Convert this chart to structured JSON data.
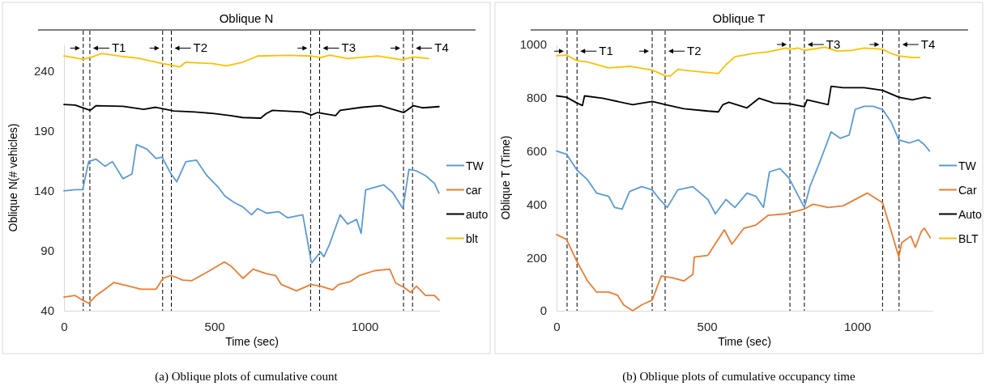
{
  "chart_data": [
    {
      "type": "line",
      "title": "Oblique N",
      "xlabel": "Time (sec)",
      "ylabel": "Oblique N(# vehicles)",
      "xlim": [
        0,
        1250
      ],
      "xticks": [
        0,
        500,
        1000
      ],
      "ylim": [
        40,
        262
      ],
      "yticks": [
        40,
        90,
        140,
        190,
        240
      ],
      "legend": "right",
      "line_style": "solid",
      "series": [
        {
          "name": "TW",
          "color": "#5b9bd5",
          "x": [
            0,
            37,
            62,
            82,
            107,
            136,
            161,
            196,
            226,
            241,
            276,
            306,
            326,
            356,
            375,
            405,
            440,
            475,
            515,
            535,
            565,
            595,
            624,
            644,
            674,
            714,
            744,
            794,
            821,
            824,
            853,
            864,
            883,
            918,
            943,
            973,
            988,
            1003,
            1063,
            1093,
            1127,
            1147,
            1172,
            1202,
            1232,
            1247
          ],
          "values": [
            140,
            141,
            141,
            164.4,
            166.4,
            160.5,
            164.4,
            150.1,
            154,
            178.6,
            174.7,
            167,
            168.1,
            154,
            147.5,
            164.3,
            165.6,
            152.7,
            142.4,
            135.6,
            130.4,
            126.5,
            120,
            125.2,
            121.3,
            122.6,
            117.5,
            120,
            82.5,
            79.9,
            89,
            85,
            95.4,
            120,
            112.3,
            116.2,
            104.5,
            140.8,
            145,
            138.5,
            125.2,
            157.9,
            156.6,
            152.7,
            146.2,
            138
          ]
        },
        {
          "name": "car",
          "color": "#ed7d31",
          "x": [
            0,
            37,
            62,
            82,
            107,
            136,
            166,
            216,
            256,
            306,
            329,
            356,
            395,
            425,
            475,
            533,
            555,
            595,
            629,
            674,
            703,
            723,
            773,
            821,
            853,
            893,
            913,
            953,
            983,
            1033,
            1083,
            1103,
            1132,
            1152,
            1172,
            1202,
            1232,
            1247
          ],
          "values": [
            51.4,
            52.7,
            48.8,
            46.2,
            52.7,
            57.9,
            63.6,
            60.5,
            57.9,
            57.9,
            67,
            69.5,
            65.6,
            65.1,
            72.1,
            80.7,
            77.3,
            67,
            74.7,
            70.8,
            69.5,
            61.8,
            56.6,
            61.8,
            60.5,
            57.4,
            61.8,
            64.4,
            69.5,
            73.4,
            74.7,
            63.1,
            59.2,
            55.3,
            60.5,
            52.7,
            52.7,
            48.8
          ]
        },
        {
          "name": "auto",
          "color": "#000000",
          "x": [
            0,
            37,
            87,
            107,
            196,
            265,
            305,
            365,
            435,
            494,
            554,
            594,
            654,
            673,
            693,
            793,
            823,
            843,
            903,
            918,
            992,
            1052,
            1130,
            1162,
            1192,
            1247
          ],
          "values": [
            212,
            211.5,
            207.1,
            211,
            210.5,
            207.9,
            209.7,
            206.6,
            205.8,
            204.5,
            202.7,
            201.1,
            200.6,
            204.5,
            207.1,
            205.8,
            203.2,
            205.3,
            202.7,
            207.1,
            209.7,
            211,
            205.3,
            211,
            209.2,
            210.2
          ]
        },
        {
          "name": "blt",
          "color": "#ffc000",
          "x": [
            0,
            62,
            87,
            126,
            196,
            246,
            329,
            385,
            405,
            495,
            540,
            595,
            644,
            744,
            821,
            854,
            883,
            943,
            1043,
            1123,
            1162,
            1212
          ],
          "values": [
            252.4,
            249.8,
            251.1,
            254.5,
            251.9,
            250.6,
            246,
            243.3,
            247.3,
            246,
            244.2,
            247.3,
            252.4,
            253,
            252.4,
            251.1,
            253.2,
            250.3,
            252.4,
            249.3,
            251.6,
            250.3
          ]
        }
      ],
      "ref_lines": [
        {
          "axis": "x",
          "value": 64,
          "color": "#000000",
          "line_style": "dashed"
        },
        {
          "axis": "x",
          "value": 86,
          "color": "#000000",
          "line_style": "dashed"
        },
        {
          "axis": "x",
          "value": 328,
          "color": "#000000",
          "line_style": "dashed"
        },
        {
          "axis": "x",
          "value": 357,
          "color": "#000000",
          "line_style": "dashed"
        },
        {
          "axis": "x",
          "value": 820,
          "color": "#000000",
          "line_style": "dashed"
        },
        {
          "axis": "x",
          "value": 850,
          "color": "#000000",
          "line_style": "dashed"
        },
        {
          "axis": "x",
          "value": 1129,
          "color": "#000000",
          "line_style": "dashed"
        },
        {
          "axis": "x",
          "value": 1159,
          "color": "#000000",
          "line_style": "dashed"
        }
      ],
      "annotations": [
        {
          "text": "T1",
          "x": 86,
          "y": 259
        },
        {
          "text": "T2",
          "x": 357,
          "y": 259
        },
        {
          "text": "T3",
          "x": 850,
          "y": 259
        },
        {
          "text": "T4",
          "x": 1159,
          "y": 259
        },
        "(a)  Oblique plots of cumulative count"
      ]
    },
    {
      "type": "line",
      "title": "Oblique T",
      "xlabel": "Time (sec)",
      "ylabel": "Oblique T (Time)",
      "xlim": [
        0,
        1250
      ],
      "xticks": [
        0,
        500,
        1000
      ],
      "ylim": [
        0,
        1000
      ],
      "yticks": [
        0,
        200,
        400,
        600,
        800,
        1000
      ],
      "legend": "right",
      "line_style": "solid",
      "series": [
        {
          "name": "TW",
          "color": "#5b9bd5",
          "x": [
            0,
            33,
            68,
            103,
            133,
            173,
            193,
            218,
            243,
            283,
            318,
            343,
            368,
            403,
            453,
            503,
            528,
            563,
            593,
            633,
            663,
            688,
            708,
            743,
            773,
            824,
            843,
            873,
            913,
            943,
            973,
            993,
            1023,
            1053,
            1084,
            1113,
            1138,
            1173,
            1203,
            1223,
            1240
          ],
          "values": [
            600,
            588,
            528,
            492,
            442,
            430,
            388,
            382,
            448,
            466,
            454,
            418,
            388,
            454,
            466,
            418,
            364,
            418,
            388,
            442,
            430,
            388,
            522,
            534,
            498,
            388,
            468,
            552,
            672,
            648,
            660,
            756,
            768,
            768,
            756,
            708,
            642,
            630,
            642,
            624,
            600
          ]
        },
        {
          "name": "Car",
          "color": "#ed7d31",
          "x": [
            0,
            33,
            68,
            103,
            133,
            173,
            203,
            223,
            253,
            283,
            318,
            348,
            383,
            423,
            453,
            458,
            503,
            558,
            583,
            623,
            663,
            703,
            763,
            824,
            853,
            903,
            953,
            1033,
            1084,
            1113,
            1138,
            1148,
            1178,
            1193,
            1213,
            1223,
            1243
          ],
          "values": [
            286,
            268,
            184,
            112,
            70,
            70,
            58,
            22,
            0,
            22,
            40,
            130,
            124,
            112,
            136,
            202,
            208,
            304,
            250,
            310,
            322,
            358,
            364,
            382,
            400,
            388,
            394,
            442,
            406,
            298,
            202,
            256,
            280,
            238,
            298,
            310,
            274
          ]
        },
        {
          "name": "Auto",
          "color": "#000000",
          "x": [
            0,
            33,
            68,
            86,
            93,
            153,
            253,
            318,
            363,
            423,
            503,
            538,
            553,
            573,
            633,
            673,
            723,
            776,
            824,
            833,
            903,
            913,
            953,
            1023,
            1084,
            1138,
            1183,
            1223,
            1243
          ],
          "values": [
            807,
            802,
            780,
            771,
            807,
            798,
            774,
            786,
            774,
            759,
            750,
            747,
            774,
            783,
            762,
            798,
            780,
            777,
            766,
            792,
            774,
            843,
            838,
            838,
            828,
            802,
            792,
            802,
            798
          ]
        },
        {
          "name": "BLT",
          "color": "#ffc000",
          "x": [
            0,
            33,
            68,
            103,
            173,
            243,
            318,
            363,
            378,
            403,
            453,
            538,
            563,
            593,
            653,
            703,
            763,
            776,
            803,
            824,
            893,
            933,
            983,
            1023,
            1084,
            1113,
            1138,
            1183,
            1208
          ],
          "values": [
            958,
            960,
            939,
            934,
            912,
            918,
            904,
            882,
            882,
            906,
            900,
            891,
            924,
            954,
            966,
            972,
            987,
            982,
            987,
            978,
            990,
            975,
            978,
            987,
            982,
            966,
            957,
            951,
            951
          ]
        }
      ],
      "ref_lines": [
        {
          "axis": "x",
          "value": 35,
          "color": "#000000",
          "line_style": "dashed"
        },
        {
          "axis": "x",
          "value": 68,
          "color": "#000000",
          "line_style": "dashed"
        },
        {
          "axis": "x",
          "value": 318,
          "color": "#000000",
          "line_style": "dashed"
        },
        {
          "axis": "x",
          "value": 361,
          "color": "#000000",
          "line_style": "dashed"
        },
        {
          "axis": "x",
          "value": 776,
          "color": "#000000",
          "line_style": "dashed"
        },
        {
          "axis": "x",
          "value": 824,
          "color": "#000000",
          "line_style": "dashed"
        },
        {
          "axis": "x",
          "value": 1084,
          "color": "#000000",
          "line_style": "dashed"
        },
        {
          "axis": "x",
          "value": 1139,
          "color": "#000000",
          "line_style": "dashed"
        }
      ],
      "annotations": [
        {
          "text": "T1",
          "x": 68,
          "y": 975
        },
        {
          "text": "T2",
          "x": 361,
          "y": 975
        },
        {
          "text": "T3",
          "x": 824,
          "y": 1000
        },
        {
          "text": "T4",
          "x": 1139,
          "y": 1000
        },
        "(b)  Oblique plots of cumulative occupancy time"
      ]
    }
  ]
}
